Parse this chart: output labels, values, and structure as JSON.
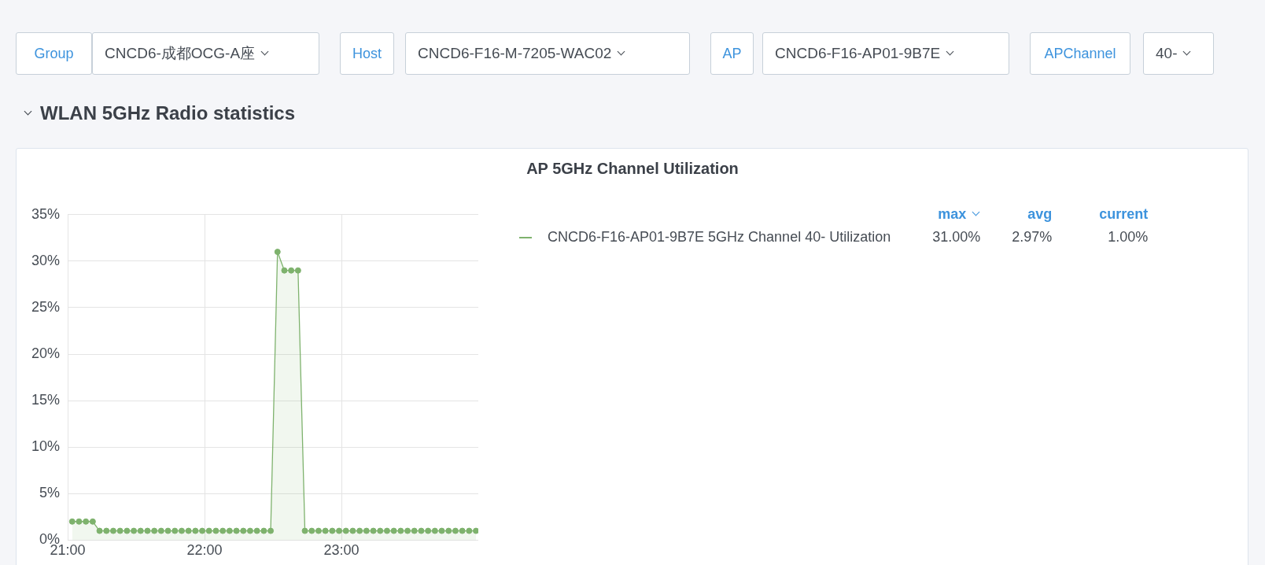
{
  "chart_data": {
    "type": "area",
    "title": "AP 5GHz Channel Utilization",
    "annotations": [
      "Group",
      "CNCD6-成都OCG-A座",
      "Host",
      "CNCD6-F16-M-7205-WAC02",
      "AP",
      "CNCD6-F16-AP01-9B7E",
      "APChannel",
      "40-",
      "WLAN 5GHz Radio statistics",
      "max",
      "avg",
      "current",
      "31.00%",
      "2.97%",
      "1.00%"
    ],
    "x": [
      21.033,
      21.083,
      21.133,
      21.183,
      21.233,
      21.283,
      21.333,
      21.383,
      21.433,
      21.483,
      21.533,
      21.583,
      21.633,
      21.683,
      21.733,
      21.783,
      21.833,
      21.883,
      21.933,
      21.983,
      22.033,
      22.083,
      22.133,
      22.183,
      22.233,
      22.283,
      22.333,
      22.383,
      22.433,
      22.483,
      22.533,
      22.583,
      22.633,
      22.683,
      22.733,
      22.783,
      22.833,
      22.883,
      22.933,
      22.983,
      23.033,
      23.083,
      23.133,
      23.183,
      23.233,
      23.283,
      23.333,
      23.383,
      23.433,
      23.483,
      23.533,
      23.583,
      23.633,
      23.683,
      23.733,
      23.783,
      23.833,
      23.883,
      23.933,
      23.983
    ],
    "series": [
      {
        "name": "CNCD6-F16-AP01-9B7E 5GHz Channel 40- Utilization",
        "color": "#7eb26d",
        "values": [
          2,
          2,
          2,
          2,
          1,
          1,
          1,
          1,
          1,
          1,
          1,
          1,
          1,
          1,
          1,
          1,
          1,
          1,
          1,
          1,
          1,
          1,
          1,
          1,
          1,
          1,
          1,
          1,
          1,
          1,
          31,
          29,
          29,
          29,
          1,
          1,
          1,
          1,
          1,
          1,
          1,
          1,
          1,
          1,
          1,
          1,
          1,
          1,
          1,
          1,
          1,
          1,
          1,
          1,
          1,
          1,
          1,
          1,
          1,
          1
        ]
      }
    ],
    "xlim": [
      21,
      24
    ],
    "xticks": [
      {
        "value": 21,
        "label": "21:00"
      },
      {
        "value": 22,
        "label": "22:00"
      },
      {
        "value": 23,
        "label": "23:00"
      }
    ],
    "ylim": [
      0,
      35
    ],
    "yticks": [
      {
        "value": 0,
        "label": "0%"
      },
      {
        "value": 5,
        "label": "5%"
      },
      {
        "value": 10,
        "label": "10%"
      },
      {
        "value": 15,
        "label": "15%"
      },
      {
        "value": 20,
        "label": "20%"
      },
      {
        "value": 25,
        "label": "25%"
      },
      {
        "value": 30,
        "label": "30%"
      },
      {
        "value": 35,
        "label": "35%"
      }
    ],
    "grid": true,
    "legend": "right",
    "marker": "circle"
  }
}
